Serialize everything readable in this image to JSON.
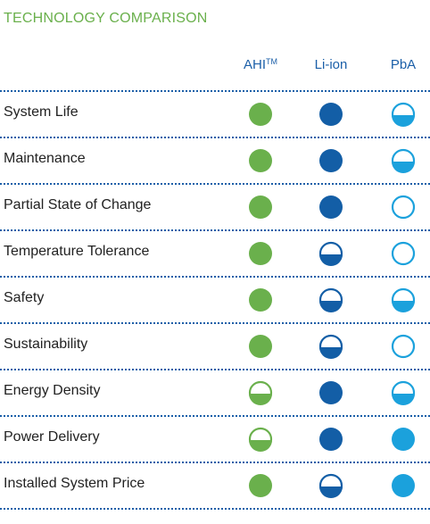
{
  "title": "TECHNOLOGY COMPARISON",
  "columns": [
    {
      "label": "AHI",
      "sup": "TM",
      "color": "#6ab04c"
    },
    {
      "label": "Li-ion",
      "sup": "",
      "color": "#135ea6"
    },
    {
      "label": "PbA",
      "sup": "",
      "color": "#1ba1dc"
    }
  ],
  "rows": [
    {
      "label": "System Life",
      "ratings": [
        "full",
        "full",
        "half"
      ]
    },
    {
      "label": "Maintenance",
      "ratings": [
        "full",
        "full",
        "half"
      ]
    },
    {
      "label": "Partial State of Change",
      "ratings": [
        "full",
        "full",
        "empty"
      ]
    },
    {
      "label": "Temperature Tolerance",
      "ratings": [
        "full",
        "half",
        "empty"
      ]
    },
    {
      "label": "Safety",
      "ratings": [
        "full",
        "half",
        "half"
      ]
    },
    {
      "label": "Sustainability",
      "ratings": [
        "full",
        "half",
        "empty"
      ]
    },
    {
      "label": "Energy Density",
      "ratings": [
        "half",
        "full",
        "half"
      ]
    },
    {
      "label": "Power Delivery",
      "ratings": [
        "half",
        "full",
        "full"
      ]
    },
    {
      "label": "Installed System Price",
      "ratings": [
        "full",
        "half",
        "full"
      ]
    }
  ]
}
